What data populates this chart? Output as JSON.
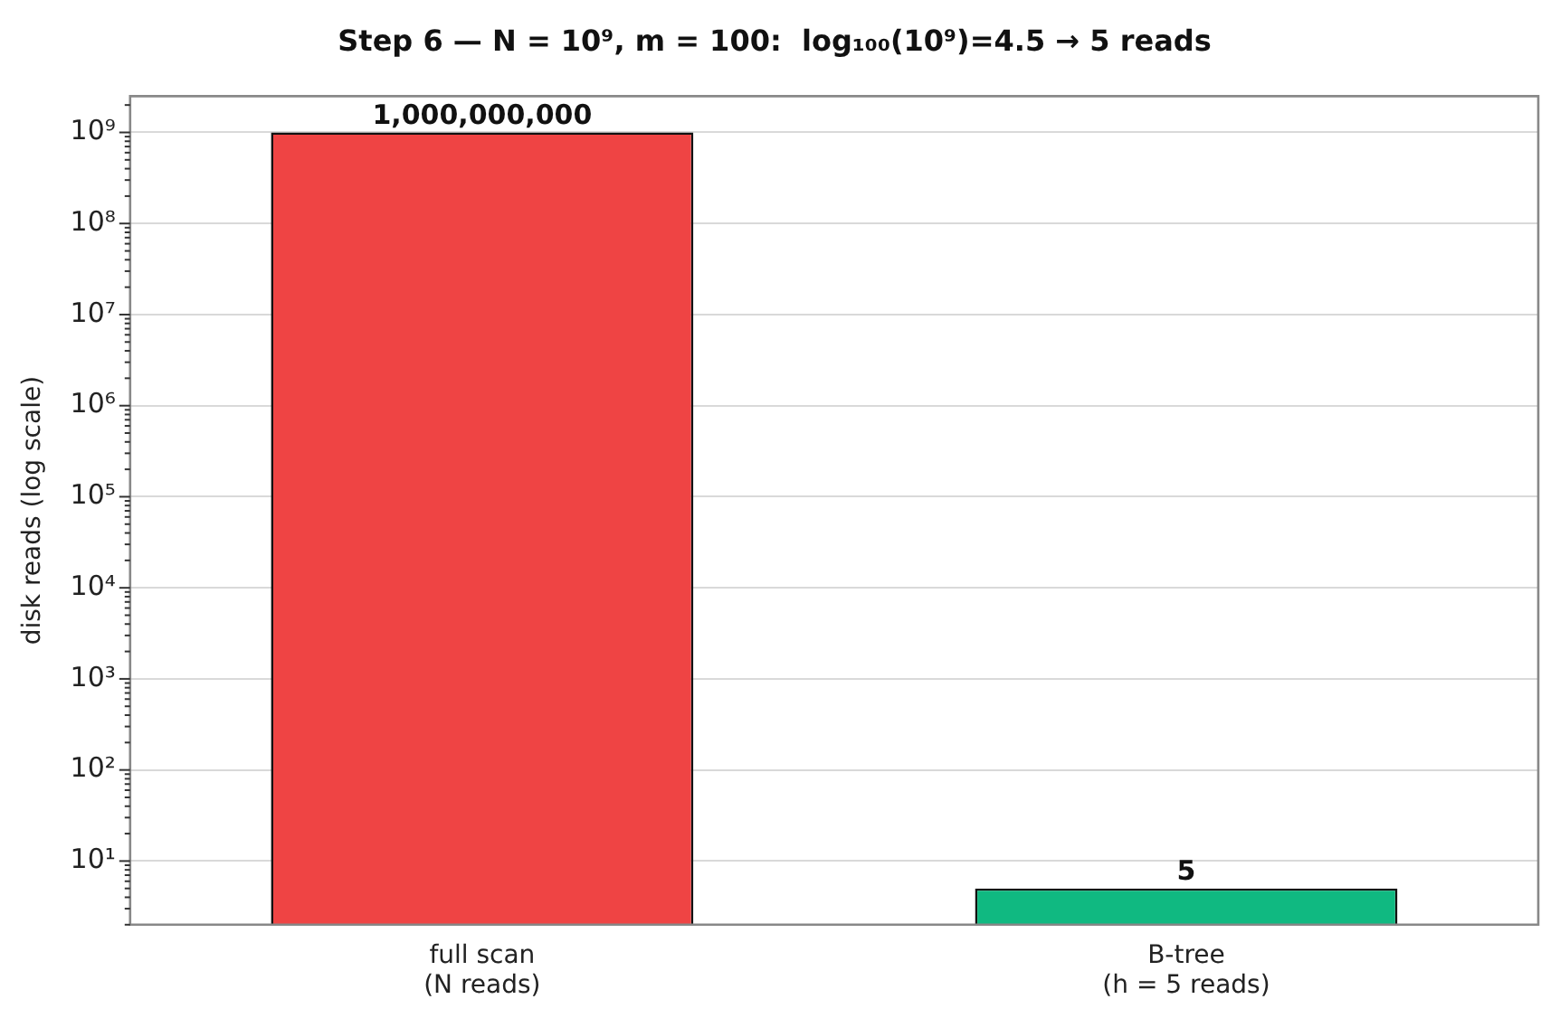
{
  "chart_data": {
    "type": "bar",
    "title": "Step 6 — N = 10⁹, m = 100:  log₁₀₀(10⁹)=4.5 → 5 reads",
    "ylabel": "disk reads (log scale)",
    "categories": [
      "full scan\n(N reads)",
      "B-tree\n(h = 5 reads)"
    ],
    "values": [
      1000000000,
      5
    ],
    "colors": [
      "#ef4444",
      "#10b981"
    ],
    "value_labels": [
      "1,000,000,000",
      "5"
    ],
    "log": "y",
    "grid": "y",
    "legend": false,
    "ylim": [
      2,
      2500000000.0
    ],
    "yticks": [
      {
        "value": 2,
        "label": null
      },
      {
        "value": 3,
        "label": null
      },
      {
        "value": 4,
        "label": null
      },
      {
        "value": 5,
        "label": null
      },
      {
        "value": 6,
        "label": null
      },
      {
        "value": 7,
        "label": null
      },
      {
        "value": 8,
        "label": null
      },
      {
        "value": 9,
        "label": null
      },
      {
        "value": 10,
        "label": "10¹"
      },
      {
        "value": 20,
        "label": null
      },
      {
        "value": 30,
        "label": null
      },
      {
        "value": 40,
        "label": null
      },
      {
        "value": 50,
        "label": null
      },
      {
        "value": 60,
        "label": null
      },
      {
        "value": 70,
        "label": null
      },
      {
        "value": 80,
        "label": null
      },
      {
        "value": 90,
        "label": null
      },
      {
        "value": 100,
        "label": "10²"
      },
      {
        "value": 200,
        "label": null
      },
      {
        "value": 300,
        "label": null
      },
      {
        "value": 400,
        "label": null
      },
      {
        "value": 500,
        "label": null
      },
      {
        "value": 600,
        "label": null
      },
      {
        "value": 700,
        "label": null
      },
      {
        "value": 800,
        "label": null
      },
      {
        "value": 900,
        "label": null
      },
      {
        "value": 1000,
        "label": "10³"
      },
      {
        "value": 2000.0,
        "label": null
      },
      {
        "value": 3000.0,
        "label": null
      },
      {
        "value": 4000.0,
        "label": null
      },
      {
        "value": 5000.0,
        "label": null
      },
      {
        "value": 6000.0,
        "label": null
      },
      {
        "value": 7000.0,
        "label": null
      },
      {
        "value": 8000.0,
        "label": null
      },
      {
        "value": 9000.0,
        "label": null
      },
      {
        "value": 10000,
        "label": "10⁴"
      },
      {
        "value": 20000.0,
        "label": null
      },
      {
        "value": 30000.0,
        "label": null
      },
      {
        "value": 40000.0,
        "label": null
      },
      {
        "value": 50000.0,
        "label": null
      },
      {
        "value": 60000.0,
        "label": null
      },
      {
        "value": 70000.0,
        "label": null
      },
      {
        "value": 80000.0,
        "label": null
      },
      {
        "value": 90000.0,
        "label": null
      },
      {
        "value": 100000,
        "label": "10⁵"
      },
      {
        "value": 200000.0,
        "label": null
      },
      {
        "value": 300000.0,
        "label": null
      },
      {
        "value": 400000.0,
        "label": null
      },
      {
        "value": 500000.0,
        "label": null
      },
      {
        "value": 600000.0,
        "label": null
      },
      {
        "value": 700000.0,
        "label": null
      },
      {
        "value": 800000.0,
        "label": null
      },
      {
        "value": 900000.0,
        "label": null
      },
      {
        "value": 1000000,
        "label": "10⁶"
      },
      {
        "value": 2000000.0,
        "label": null
      },
      {
        "value": 3000000.0,
        "label": null
      },
      {
        "value": 4000000.0,
        "label": null
      },
      {
        "value": 5000000.0,
        "label": null
      },
      {
        "value": 6000000.0,
        "label": null
      },
      {
        "value": 7000000.0,
        "label": null
      },
      {
        "value": 8000000.0,
        "label": null
      },
      {
        "value": 9000000.0,
        "label": null
      },
      {
        "value": 10000000,
        "label": "10⁷"
      },
      {
        "value": 20000000.0,
        "label": null
      },
      {
        "value": 30000000.0,
        "label": null
      },
      {
        "value": 40000000.0,
        "label": null
      },
      {
        "value": 50000000.0,
        "label": null
      },
      {
        "value": 60000000.0,
        "label": null
      },
      {
        "value": 70000000.0,
        "label": null
      },
      {
        "value": 80000000.0,
        "label": null
      },
      {
        "value": 90000000.0,
        "label": null
      },
      {
        "value": 100000000,
        "label": "10⁸"
      },
      {
        "value": 200000000.0,
        "label": null
      },
      {
        "value": 300000000.0,
        "label": null
      },
      {
        "value": 400000000.0,
        "label": null
      },
      {
        "value": 500000000.0,
        "label": null
      },
      {
        "value": 600000000.0,
        "label": null
      },
      {
        "value": 700000000.0,
        "label": null
      },
      {
        "value": 800000000.0,
        "label": null
      },
      {
        "value": 900000000.0,
        "label": null
      },
      {
        "value": 1000000000,
        "label": "10⁹"
      },
      {
        "value": 2000000000.0,
        "label": null
      }
    ]
  }
}
